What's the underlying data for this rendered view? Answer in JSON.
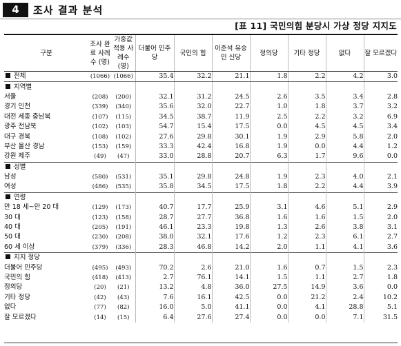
{
  "header": {
    "number": "4",
    "title": "조사 결과 분석"
  },
  "caption": "[표 11] 국민의힘 분당시 가상 정당 지지도",
  "columns": {
    "group": "구분",
    "n_completed": "조사 완료 사례수 (명)",
    "n_weighted": "가중값 적용 사례수 (명)",
    "parties": [
      "더불어 민주당",
      "국민의 힘",
      "이준석 유승민 신당",
      "정의당",
      "기타 정당",
      "없다",
      "잘 모르겠다"
    ]
  },
  "total": {
    "label": "전체",
    "n1": "(1066)",
    "n2": "(1066)",
    "v": [
      "35.4",
      "32.2",
      "21.1",
      "1.8",
      "2.2",
      "4.2",
      "3.0"
    ]
  },
  "sections": [
    {
      "title": "지역별",
      "rows": [
        {
          "label": "서울",
          "n1": "(208)",
          "n2": "(200)",
          "v": [
            "32.1",
            "31.2",
            "24.5",
            "2.6",
            "3.5",
            "3.4",
            "2.8"
          ]
        },
        {
          "label": "경기 인천",
          "n1": "(339)",
          "n2": "(340)",
          "v": [
            "35.6",
            "32.0",
            "22.7",
            "1.0",
            "1.8",
            "3.7",
            "3.2"
          ]
        },
        {
          "label": "대전 세종 충남북",
          "n1": "(107)",
          "n2": "(115)",
          "v": [
            "34.5",
            "38.7",
            "11.9",
            "2.5",
            "2.2",
            "3.2",
            "6.9"
          ]
        },
        {
          "label": "광주 전남북",
          "n1": "(102)",
          "n2": "(103)",
          "v": [
            "54.7",
            "15.4",
            "17.5",
            "0.0",
            "4.5",
            "4.5",
            "3.4"
          ]
        },
        {
          "label": "대구 경북",
          "n1": "(108)",
          "n2": "(102)",
          "v": [
            "27.6",
            "29.8",
            "30.1",
            "1.9",
            "2.9",
            "5.8",
            "2.0"
          ]
        },
        {
          "label": "부산 울산 경남",
          "n1": "(153)",
          "n2": "(159)",
          "v": [
            "33.3",
            "42.4",
            "16.8",
            "1.9",
            "0.0",
            "4.4",
            "1.2"
          ]
        },
        {
          "label": "강원 제주",
          "n1": "(49)",
          "n2": "(47)",
          "v": [
            "33.0",
            "28.8",
            "20.7",
            "6.3",
            "1.7",
            "9.6",
            "0.0"
          ]
        }
      ]
    },
    {
      "title": "성별",
      "rows": [
        {
          "label": "남성",
          "n1": "(580)",
          "n2": "(531)",
          "v": [
            "35.1",
            "29.8",
            "24.8",
            "1.9",
            "2.3",
            "4.0",
            "2.1"
          ]
        },
        {
          "label": "여성",
          "n1": "(486)",
          "n2": "(535)",
          "v": [
            "35.8",
            "34.5",
            "17.5",
            "1.8",
            "2.2",
            "4.4",
            "3.9"
          ]
        }
      ]
    },
    {
      "title": "연령",
      "rows": [
        {
          "label": "만 18 세~만 20 대",
          "n1": "(129)",
          "n2": "(173)",
          "v": [
            "40.7",
            "17.7",
            "25.9",
            "3.1",
            "4.6",
            "5.1",
            "2.9"
          ]
        },
        {
          "label": "30 대",
          "n1": "(123)",
          "n2": "(158)",
          "v": [
            "28.7",
            "27.7",
            "36.8",
            "1.6",
            "1.6",
            "1.5",
            "2.0"
          ]
        },
        {
          "label": "40 대",
          "n1": "(205)",
          "n2": "(191)",
          "v": [
            "46.1",
            "23.3",
            "19.8",
            "1.3",
            "2.6",
            "3.8",
            "3.1"
          ]
        },
        {
          "label": "50 대",
          "n1": "(230)",
          "n2": "(208)",
          "v": [
            "38.0",
            "32.1",
            "17.6",
            "1.2",
            "2.3",
            "6.1",
            "2.7"
          ]
        },
        {
          "label": "60 세 이상",
          "n1": "(379)",
          "n2": "(336)",
          "v": [
            "28.3",
            "46.8",
            "14.2",
            "2.0",
            "1.1",
            "4.1",
            "3.6"
          ]
        }
      ]
    },
    {
      "title": "지지 정당",
      "rows": [
        {
          "label": "더불어 민주당",
          "n1": "(495)",
          "n2": "(493)",
          "v": [
            "70.2",
            "2.6",
            "21.0",
            "1.6",
            "0.7",
            "1.5",
            "2.3"
          ]
        },
        {
          "label": "국민의 힘",
          "n1": "(418)",
          "n2": "(413)",
          "v": [
            "2.7",
            "76.1",
            "14.1",
            "1.5",
            "1.1",
            "2.7",
            "1.8"
          ]
        },
        {
          "label": "정의당",
          "n1": "(20)",
          "n2": "(21)",
          "v": [
            "13.2",
            "4.8",
            "36.0",
            "27.5",
            "14.9",
            "3.6",
            "0.0"
          ]
        },
        {
          "label": "기타 정당",
          "n1": "(42)",
          "n2": "(43)",
          "v": [
            "7.6",
            "16.1",
            "42.5",
            "0.0",
            "21.2",
            "2.4",
            "10.2"
          ]
        },
        {
          "label": "없다",
          "n1": "(77)",
          "n2": "(82)",
          "v": [
            "16.0",
            "5.0",
            "41.1",
            "0.0",
            "4.1",
            "28.8",
            "5.1"
          ]
        },
        {
          "label": "잘 모르겠다",
          "n1": "(14)",
          "n2": "(15)",
          "v": [
            "6.4",
            "27.6",
            "27.4",
            "0.0",
            "0.0",
            "7.1",
            "31.5"
          ]
        }
      ]
    }
  ]
}
